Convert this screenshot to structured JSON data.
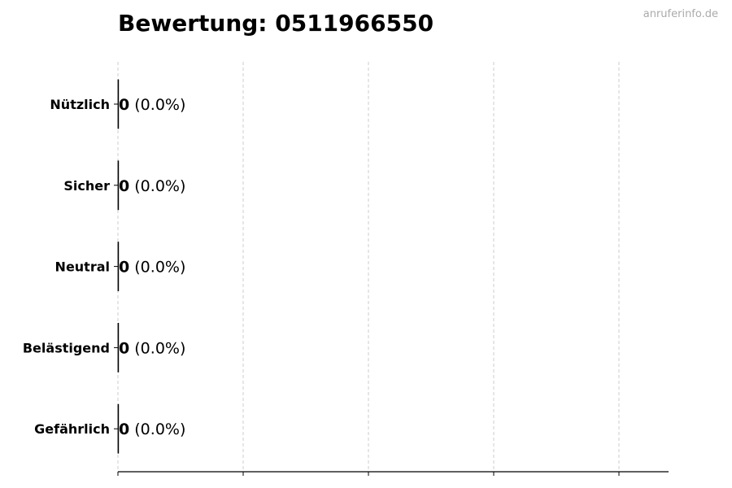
{
  "watermark": "anruferinfo.de",
  "chart_data": {
    "type": "bar",
    "orientation": "horizontal",
    "title": "Bewertung: 0511966550",
    "categories": [
      "Nützlich",
      "Sicher",
      "Neutral",
      "Belästigend",
      "Gefährlich"
    ],
    "values": [
      0,
      0,
      0,
      0,
      0
    ],
    "data_labels": [
      {
        "count": "0",
        "percent": "(0.0%)"
      },
      {
        "count": "0",
        "percent": "(0.0%)"
      },
      {
        "count": "0",
        "percent": "(0.0%)"
      },
      {
        "count": "0",
        "percent": "(0.0%)"
      },
      {
        "count": "0",
        "percent": "(0.0%)"
      }
    ],
    "xlabel": "",
    "ylabel": "",
    "x_tick_labels_shown": false,
    "grid": "vertical dashed",
    "colors": {
      "bar_edge": "#000000",
      "grid": "#cccccc",
      "axis": "#000000"
    }
  }
}
